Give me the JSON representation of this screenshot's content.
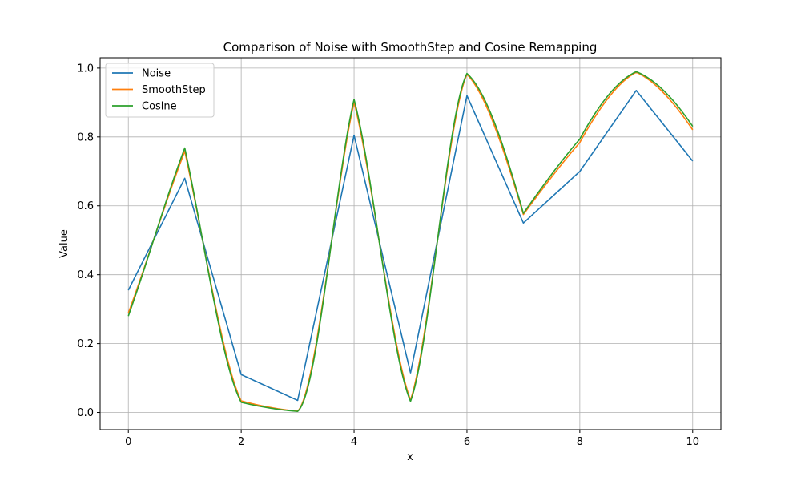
{
  "chart_data": {
    "type": "line",
    "title": "Comparison of Noise with SmoothStep and Cosine Remapping",
    "xlabel": "x",
    "ylabel": "Value",
    "xlim": [
      -0.5,
      10.5
    ],
    "ylim": [
      -0.05,
      1.03
    ],
    "xticks": [
      0,
      2,
      4,
      6,
      8,
      10
    ],
    "yticks": [
      0.0,
      0.2,
      0.4,
      0.6,
      0.8,
      1.0
    ],
    "xtick_labels": [
      "0",
      "2",
      "4",
      "6",
      "8",
      "10"
    ],
    "ytick_labels": [
      "0.0",
      "0.2",
      "0.4",
      "0.6",
      "0.8",
      "1.0"
    ],
    "grid": true,
    "legend_position": "top-left",
    "knots": {
      "x": [
        0,
        1,
        2,
        3,
        4,
        5,
        6,
        7,
        8,
        9,
        10
      ],
      "noise": [
        0.355,
        0.68,
        0.11,
        0.035,
        0.805,
        0.115,
        0.92,
        0.55,
        0.7,
        0.935,
        0.73
      ]
    },
    "series": [
      {
        "name": "Noise",
        "color": "#1f77b4",
        "remap": "linear"
      },
      {
        "name": "SmoothStep",
        "color": "#ff7f0e",
        "remap": "smoothstep"
      },
      {
        "name": "Cosine",
        "color": "#2ca02c",
        "remap": "cosine"
      }
    ]
  }
}
